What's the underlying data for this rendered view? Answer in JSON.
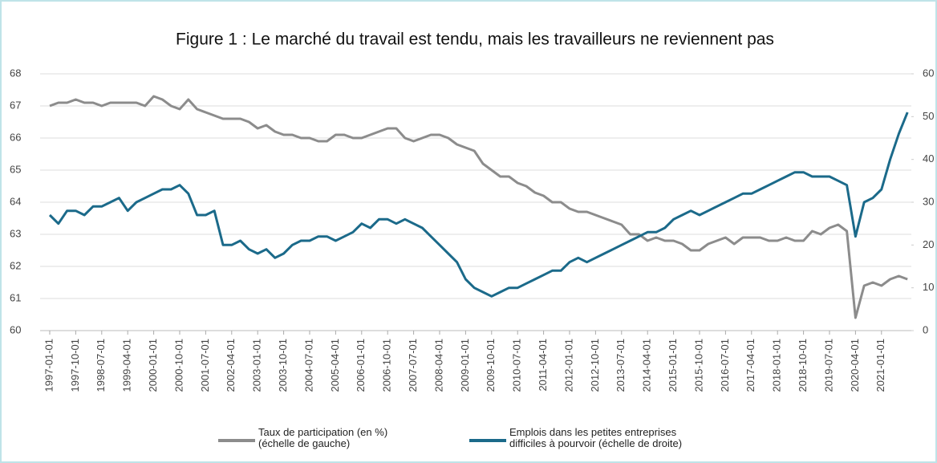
{
  "chart_data": {
    "type": "line",
    "title": "Figure 1 : Le marché du travail est tendu, mais les travailleurs ne reviennent pas",
    "x": [
      "1997-01-01",
      "1997-04-01",
      "1997-07-01",
      "1997-10-01",
      "1998-01-01",
      "1998-04-01",
      "1998-07-01",
      "1998-10-01",
      "1999-01-01",
      "1999-04-01",
      "1999-07-01",
      "1999-10-01",
      "2000-01-01",
      "2000-04-01",
      "2000-07-01",
      "2000-10-01",
      "2001-01-01",
      "2001-04-01",
      "2001-07-01",
      "2001-10-01",
      "2002-01-01",
      "2002-04-01",
      "2002-07-01",
      "2002-10-01",
      "2003-01-01",
      "2003-04-01",
      "2003-07-01",
      "2003-10-01",
      "2004-01-01",
      "2004-04-01",
      "2004-07-01",
      "2004-10-01",
      "2005-01-01",
      "2005-04-01",
      "2005-07-01",
      "2005-10-01",
      "2006-01-01",
      "2006-04-01",
      "2006-07-01",
      "2006-10-01",
      "2007-01-01",
      "2007-04-01",
      "2007-07-01",
      "2007-10-01",
      "2008-01-01",
      "2008-04-01",
      "2008-07-01",
      "2008-10-01",
      "2009-01-01",
      "2009-04-01",
      "2009-07-01",
      "2009-10-01",
      "2010-01-01",
      "2010-04-01",
      "2010-07-01",
      "2010-10-01",
      "2011-01-01",
      "2011-04-01",
      "2011-07-01",
      "2011-10-01",
      "2012-01-01",
      "2012-04-01",
      "2012-07-01",
      "2012-10-01",
      "2013-01-01",
      "2013-04-01",
      "2013-07-01",
      "2013-10-01",
      "2014-01-01",
      "2014-04-01",
      "2014-07-01",
      "2014-10-01",
      "2015-01-01",
      "2015-04-01",
      "2015-07-01",
      "2015-10-01",
      "2016-01-01",
      "2016-04-01",
      "2016-07-01",
      "2016-10-01",
      "2017-01-01",
      "2017-04-01",
      "2017-07-01",
      "2017-10-01",
      "2018-01-01",
      "2018-04-01",
      "2018-07-01",
      "2018-10-01",
      "2019-01-01",
      "2019-04-01",
      "2019-07-01",
      "2019-10-01",
      "2020-01-01",
      "2020-04-01",
      "2020-07-01",
      "2020-10-01",
      "2021-01-01",
      "2021-04-01",
      "2021-07-01",
      "2021-10-01"
    ],
    "xticks": [
      "1997-01-01",
      "1997-10-01",
      "1998-07-01",
      "1999-04-01",
      "2000-01-01",
      "2000-10-01",
      "2001-07-01",
      "2002-04-01",
      "2003-01-01",
      "2003-10-01",
      "2004-07-01",
      "2005-04-01",
      "2006-01-01",
      "2006-10-01",
      "2007-07-01",
      "2008-04-01",
      "2009-01-01",
      "2009-10-01",
      "2010-07-01",
      "2011-04-01",
      "2012-01-01",
      "2012-10-01",
      "2013-07-01",
      "2014-04-01",
      "2015-01-01",
      "2015-10-01",
      "2016-07-01",
      "2017-04-01",
      "2018-01-01",
      "2018-10-01",
      "2019-07-01",
      "2020-04-01",
      "2021-01-01"
    ],
    "series": [
      {
        "name": "Taux de participation (en %)\n(échelle de gauche)",
        "color": "#8c8c8c",
        "axis": "y",
        "values": [
          67.0,
          67.1,
          67.1,
          67.2,
          67.1,
          67.1,
          67.0,
          67.1,
          67.1,
          67.1,
          67.1,
          67.0,
          67.3,
          67.2,
          67.0,
          66.9,
          67.2,
          66.9,
          66.8,
          66.7,
          66.6,
          66.6,
          66.6,
          66.5,
          66.3,
          66.4,
          66.2,
          66.1,
          66.1,
          66.0,
          66.0,
          65.9,
          65.9,
          66.1,
          66.1,
          66.0,
          66.0,
          66.1,
          66.2,
          66.3,
          66.3,
          66.0,
          65.9,
          66.0,
          66.1,
          66.1,
          66.0,
          65.8,
          65.7,
          65.6,
          65.2,
          65.0,
          64.8,
          64.8,
          64.6,
          64.5,
          64.3,
          64.2,
          64.0,
          64.0,
          63.8,
          63.7,
          63.7,
          63.6,
          63.5,
          63.4,
          63.3,
          63.0,
          63.0,
          62.8,
          62.9,
          62.8,
          62.8,
          62.7,
          62.5,
          62.5,
          62.7,
          62.8,
          62.9,
          62.7,
          62.9,
          62.9,
          62.9,
          62.8,
          62.8,
          62.9,
          62.8,
          62.8,
          63.1,
          63.0,
          63.2,
          63.3,
          63.1,
          60.4,
          61.4,
          61.5,
          61.4,
          61.6,
          61.7,
          61.6
        ]
      },
      {
        "name": "Emplois dans les petites entreprises\ndifficiles à pourvoir (échelle de droite)",
        "color": "#1b6a8a",
        "axis": "y2",
        "values": [
          27,
          25,
          28,
          28,
          27,
          29,
          29,
          30,
          31,
          28,
          30,
          31,
          32,
          33,
          33,
          34,
          32,
          27,
          27,
          28,
          20,
          20,
          21,
          19,
          18,
          19,
          17,
          18,
          20,
          21,
          21,
          22,
          22,
          21,
          22,
          23,
          25,
          24,
          26,
          26,
          25,
          26,
          25,
          24,
          22,
          20,
          18,
          16,
          12,
          10,
          9,
          8,
          9,
          10,
          10,
          11,
          12,
          13,
          14,
          14,
          16,
          17,
          16,
          17,
          18,
          19,
          20,
          21,
          22,
          23,
          23,
          24,
          26,
          27,
          28,
          27,
          28,
          29,
          30,
          31,
          32,
          32,
          33,
          34,
          35,
          36,
          37,
          37,
          36,
          36,
          36,
          35,
          34,
          22,
          30,
          31,
          33,
          40,
          46,
          51
        ]
      }
    ],
    "ylim": [
      60,
      68
    ],
    "yticks": [
      60,
      61,
      62,
      63,
      64,
      65,
      66,
      67,
      68
    ],
    "y2lim": [
      0,
      60
    ],
    "y2ticks": [
      0,
      10,
      20,
      30,
      40,
      50,
      60
    ],
    "grid": true
  }
}
